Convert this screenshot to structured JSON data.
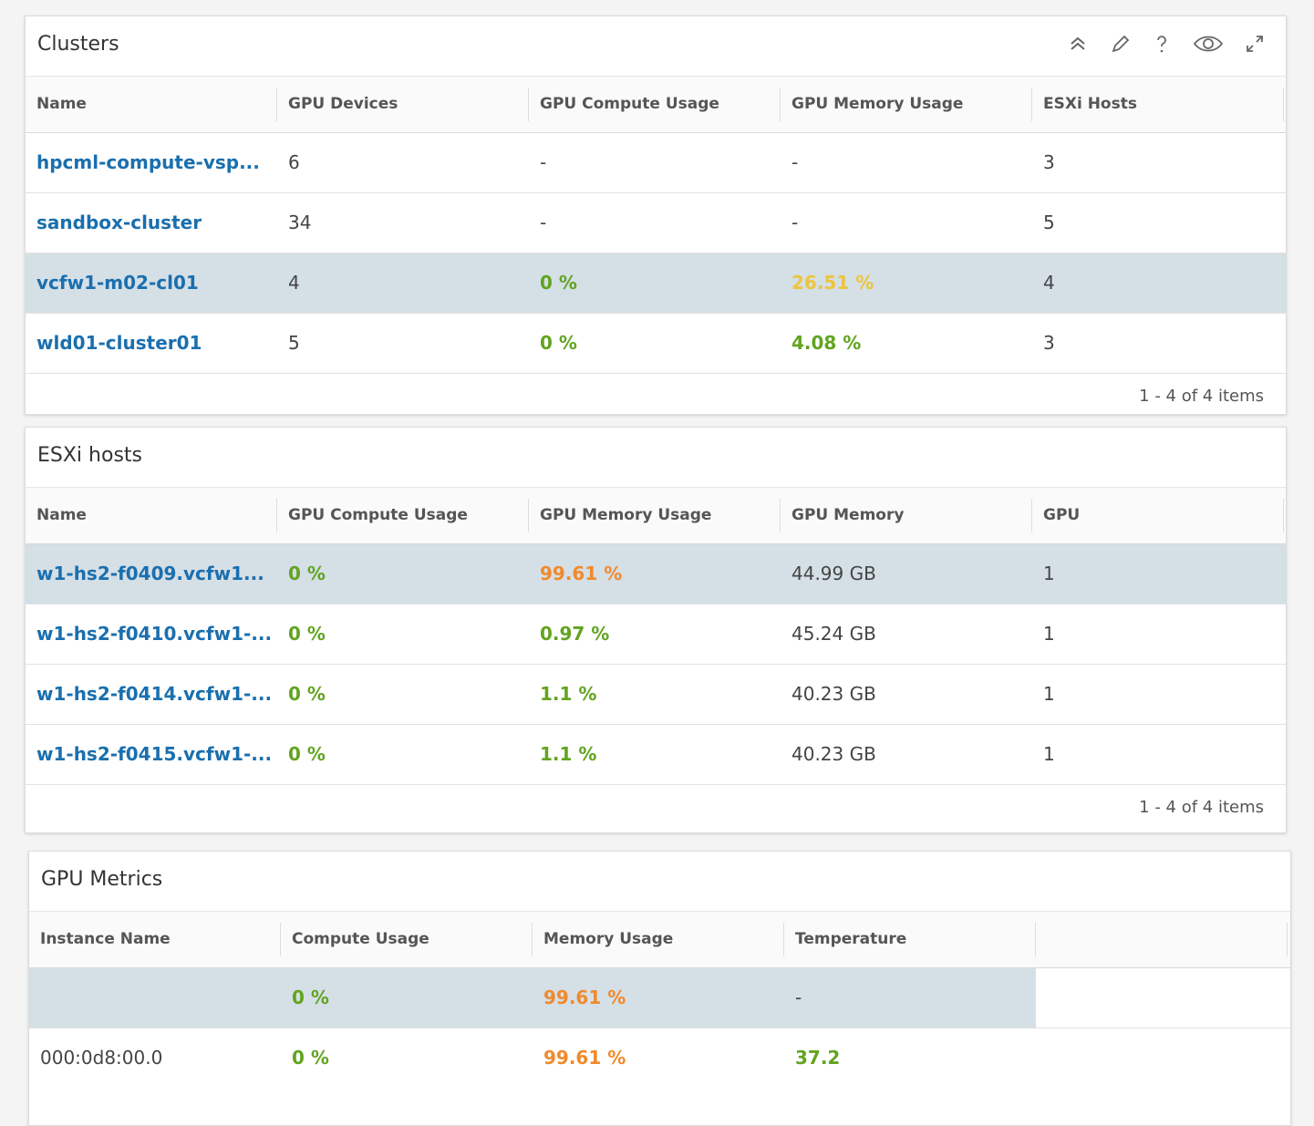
{
  "panels": [
    {
      "title": "Clusters",
      "columns": [
        "Name",
        "GPU Devices",
        "GPU Compute Usage",
        "GPU Memory Usage",
        "ESXi Hosts"
      ],
      "rows": [
        [
          "hpcml-compute-vsp...",
          "6",
          "-",
          "-",
          "3"
        ],
        [
          "sandbox-cluster",
          "34",
          "-",
          "-",
          "5"
        ],
        [
          "vcfw1-m02-cl01",
          "4",
          "0 %",
          "26.51 %",
          "4"
        ],
        [
          "wld01-cluster01",
          "5",
          "0 %",
          "4.08 %",
          "3"
        ]
      ],
      "footer": "1 - 4 of 4 items"
    },
    {
      "title": "ESXi hosts",
      "columns": [
        "Name",
        "GPU Compute Usage",
        "GPU Memory Usage",
        "GPU Memory",
        "GPU"
      ],
      "rows": [
        [
          "w1-hs2-f0409.vcfw1...",
          "0 %",
          "99.61 %",
          "44.99 GB",
          "1"
        ],
        [
          "w1-hs2-f0410.vcfw1-...",
          "0 %",
          "0.97 %",
          "45.24 GB",
          "1"
        ],
        [
          "w1-hs2-f0414.vcfw1-...",
          "0 %",
          "1.1 %",
          "40.23 GB",
          "1"
        ],
        [
          "w1-hs2-f0415.vcfw1-...",
          "0 %",
          "1.1 %",
          "40.23 GB",
          "1"
        ]
      ],
      "footer": "1 - 4 of 4 items"
    },
    {
      "title": "GPU Metrics",
      "columns": [
        "Instance Name",
        "Compute Usage",
        "Memory Usage",
        "Temperature"
      ],
      "rows": [
        [
          null,
          "0 %",
          "99.61 %",
          "-"
        ],
        [
          "000:0d8:00.0",
          "0 %",
          "99.61 %",
          "37.2"
        ]
      ]
    }
  ]
}
